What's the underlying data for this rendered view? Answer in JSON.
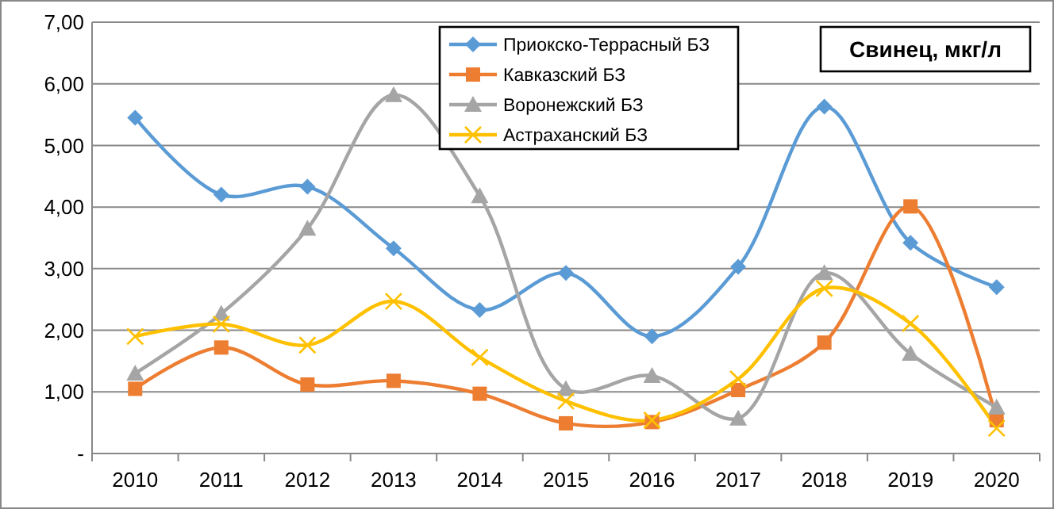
{
  "chart_data": {
    "type": "line",
    "title": "Свинец, мкг/л",
    "categories": [
      "2010",
      "2011",
      "2012",
      "2013",
      "2014",
      "2015",
      "2016",
      "2017",
      "2018",
      "2019",
      "2020"
    ],
    "series": [
      {
        "name": "Приокско-Террасный БЗ",
        "color": "#5b9bd5",
        "marker": "diamond",
        "values": [
          5.45,
          4.2,
          4.33,
          3.33,
          2.33,
          2.93,
          1.9,
          3.03,
          5.63,
          3.42,
          2.7
        ]
      },
      {
        "name": "Кавказский БЗ",
        "color": "#ed7d31",
        "marker": "square",
        "values": [
          1.05,
          1.72,
          1.12,
          1.18,
          0.97,
          0.49,
          0.51,
          1.03,
          1.8,
          4.01,
          0.54
        ]
      },
      {
        "name": "Воронежский БЗ",
        "color": "#a5a5a5",
        "marker": "triangle",
        "values": [
          1.3,
          2.27,
          3.65,
          5.82,
          4.18,
          1.05,
          1.26,
          0.57,
          2.93,
          1.62,
          0.75
        ]
      },
      {
        "name": "Астраханский БЗ",
        "color": "#ffc000",
        "marker": "cross",
        "values": [
          1.9,
          2.1,
          1.76,
          2.47,
          1.56,
          0.85,
          0.54,
          1.21,
          2.68,
          2.11,
          0.41
        ]
      }
    ],
    "ylim": [
      0,
      7
    ],
    "yticks": [
      {
        "value": 0,
        "label": "-"
      },
      {
        "value": 1,
        "label": "1,00"
      },
      {
        "value": 2,
        "label": "2,00"
      },
      {
        "value": 3,
        "label": "3,00"
      },
      {
        "value": 4,
        "label": "4,00"
      },
      {
        "value": 5,
        "label": "5,00"
      },
      {
        "value": 6,
        "label": "6,00"
      },
      {
        "value": 7,
        "label": "7,00"
      }
    ],
    "grid": "y",
    "legend": "top"
  }
}
